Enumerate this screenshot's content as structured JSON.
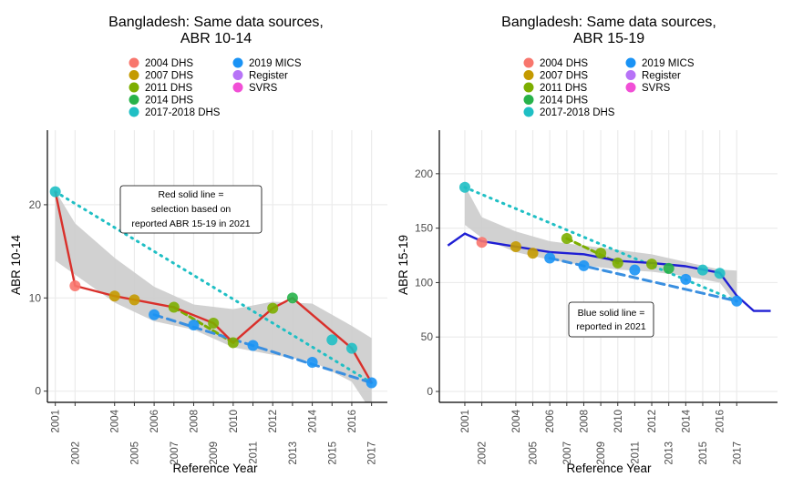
{
  "colors": {
    "2004 DHS": "#F8766D",
    "2007 DHS": "#C49A00",
    "2011 DHS": "#7CAE00",
    "2014 DHS": "#27B24A",
    "2017-2018 DHS": "#1FBFC4",
    "2019 MICS": "#1A93F5",
    "Register": "#B773F7",
    "SVRS": "#F14FD6",
    "selection_line": "#D9302B",
    "reported_line": "#1F1FD4",
    "band": "#CCCCCC",
    "grid": "#EBEBEB",
    "mics_dashed": "#3A8FE0"
  },
  "chart_data": [
    {
      "type": "scatter",
      "title": "Bangladesh: Same data sources,",
      "subtitle": "ABR 10-14",
      "xlabel": "Reference Year",
      "ylabel": "ABR 10-14",
      "xlim": [
        2000.6,
        2017.8
      ],
      "ylim": [
        -1.2,
        28
      ],
      "yticks": [
        0,
        10,
        20
      ],
      "xticks_top": [
        "2001",
        "2004",
        "2006",
        "2008",
        "2010",
        "2012",
        "2014",
        "2016"
      ],
      "xticks_bottom": [
        "2002",
        "2005",
        "2007",
        "2009",
        "2011",
        "2013",
        "2015",
        "2017"
      ],
      "xtick_values": [
        2001,
        2002,
        2004,
        2005,
        2006,
        2007,
        2008,
        2009,
        2010,
        2011,
        2012,
        2013,
        2014,
        2015,
        2016,
        2017
      ],
      "grid": true,
      "legend_position": "top",
      "legend": [
        "2004 DHS",
        "2007 DHS",
        "2011 DHS",
        "2014 DHS",
        "2017-2018 DHS",
        "2019 MICS",
        "Register",
        "SVRS"
      ],
      "annotation": [
        "Red solid line =",
        "selection based on",
        "reported ABR 15-19 in 2021"
      ],
      "series": [
        {
          "name": "2017-2018 DHS",
          "x": [
            2001,
            2015,
            2016
          ],
          "y": [
            21.4,
            5.5,
            4.6
          ],
          "trend": [
            [
              2001,
              21.4
            ],
            [
              2017,
              0.9
            ]
          ]
        },
        {
          "name": "2004 DHS",
          "x": [
            2002
          ],
          "y": [
            11.3
          ]
        },
        {
          "name": "2007 DHS",
          "x": [
            2004,
            2005
          ],
          "y": [
            10.2,
            9.8
          ]
        },
        {
          "name": "2011 DHS",
          "x": [
            2007,
            2009,
            2010,
            2012
          ],
          "y": [
            9.0,
            7.3,
            5.2,
            8.9
          ],
          "trend": [
            [
              2007,
              9.0
            ],
            [
              2010,
              5.2
            ]
          ]
        },
        {
          "name": "2014 DHS",
          "x": [
            2013
          ],
          "y": [
            10.0
          ]
        },
        {
          "name": "2019 MICS",
          "x": [
            2006,
            2008,
            2011,
            2014,
            2017
          ],
          "y": [
            8.2,
            7.1,
            4.9,
            3.1,
            0.9
          ],
          "trend": [
            [
              2006,
              8.2
            ],
            [
              2017,
              0.9
            ]
          ]
        }
      ],
      "selection_line": {
        "x": [
          2001,
          2002,
          2004,
          2005,
          2007,
          2009,
          2010,
          2012,
          2013,
          2016,
          2017
        ],
        "y": [
          21.4,
          11.3,
          10.2,
          9.8,
          9.0,
          7.3,
          5.2,
          8.9,
          10.0,
          4.6,
          0.9
        ]
      },
      "band": {
        "x": [
          2001,
          2002,
          2004,
          2006,
          2008,
          2010,
          2012,
          2014,
          2016,
          2017
        ],
        "lower": [
          14.0,
          12.5,
          9.5,
          7.5,
          6.6,
          4.7,
          3.9,
          3.2,
          1.0,
          -2.2
        ],
        "upper": [
          21.5,
          18.0,
          14.3,
          11.2,
          9.3,
          8.8,
          9.6,
          9.4,
          7.0,
          5.7
        ]
      }
    },
    {
      "type": "scatter",
      "title": "Bangladesh: Same data sources,",
      "subtitle": "ABR 15-19",
      "xlabel": "Reference Year",
      "ylabel": "ABR 15-19",
      "xlim": [
        1999.5,
        2019.4
      ],
      "ylim": [
        -10,
        240
      ],
      "yticks": [
        0,
        50,
        100,
        150,
        200
      ],
      "xticks_top": [
        "2001",
        "2004",
        "2006",
        "2008",
        "2010",
        "2012",
        "2014",
        "2016"
      ],
      "xticks_bottom": [
        "2002",
        "2005",
        "2007",
        "2009",
        "2011",
        "2013",
        "2015",
        "2017"
      ],
      "xtick_values": [
        2001,
        2002,
        2004,
        2005,
        2006,
        2007,
        2008,
        2009,
        2010,
        2011,
        2012,
        2013,
        2014,
        2015,
        2016,
        2017
      ],
      "grid": true,
      "legend_position": "top",
      "legend": [
        "2004 DHS",
        "2007 DHS",
        "2011 DHS",
        "2014 DHS",
        "2017-2018 DHS",
        "2019 MICS",
        "Register",
        "SVRS"
      ],
      "annotation": [
        "Blue solid line =",
        "reported in 2021"
      ],
      "series": [
        {
          "name": "2017-2018 DHS",
          "x": [
            2001,
            2015,
            2016
          ],
          "y": [
            187.5,
            111.5,
            108.5
          ],
          "trend": [
            [
              2001,
              187.5
            ],
            [
              2017,
              83
            ]
          ]
        },
        {
          "name": "2004 DHS",
          "x": [
            2002
          ],
          "y": [
            137
          ]
        },
        {
          "name": "2007 DHS",
          "x": [
            2004,
            2005
          ],
          "y": [
            133,
            127
          ]
        },
        {
          "name": "2011 DHS",
          "x": [
            2007,
            2009,
            2010,
            2012
          ],
          "y": [
            140.5,
            127,
            118,
            117
          ],
          "trend": [
            [
              2007,
              140.5
            ],
            [
              2010,
              118
            ]
          ]
        },
        {
          "name": "2014 DHS",
          "x": [
            2013
          ],
          "y": [
            113
          ]
        },
        {
          "name": "2019 MICS",
          "x": [
            2006,
            2008,
            2011,
            2014,
            2017
          ],
          "y": [
            122.5,
            115.5,
            111.5,
            103,
            83
          ],
          "trend": [
            [
              2006,
              122.5
            ],
            [
              2017,
              83
            ]
          ]
        }
      ],
      "reported_line": {
        "x": [
          2000,
          2001,
          2002,
          2004,
          2006,
          2008,
          2010,
          2012,
          2014,
          2016,
          2017,
          2018,
          2019
        ],
        "y": [
          134,
          145,
          138,
          133,
          128,
          126,
          120,
          118,
          115,
          109,
          88,
          74,
          74
        ]
      },
      "band": {
        "x": [
          2001,
          2002,
          2004,
          2006,
          2008,
          2010,
          2012,
          2014,
          2016,
          2017
        ],
        "lower": [
          153,
          141,
          128,
          121,
          116,
          112,
          110,
          106,
          100,
          80
        ],
        "upper": [
          189,
          160,
          147,
          138,
          134,
          130,
          126,
          119,
          112,
          111
        ]
      }
    }
  ]
}
